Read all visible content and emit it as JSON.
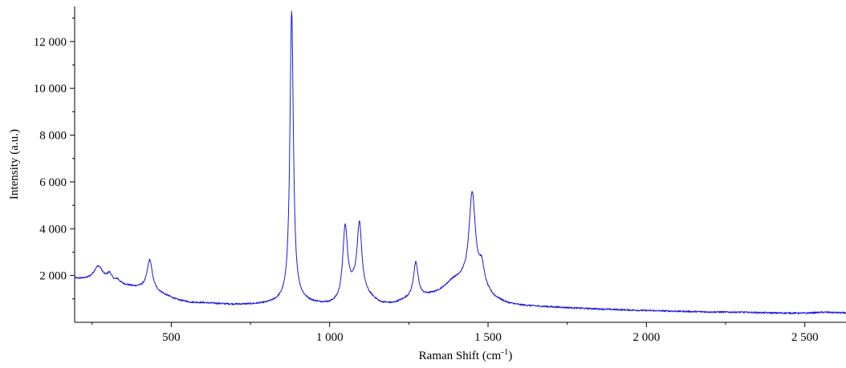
{
  "chart_data": {
    "type": "line",
    "title": "",
    "xlabel": "Raman Shift (cm",
    "xlabel_superscript": "-1",
    "xlabel_suffix": ")",
    "ylabel": "Intensity (a.u.)",
    "xlim": [
      195,
      2630
    ],
    "ylim": [
      0,
      13500
    ],
    "x_ticks": [
      {
        "value": 500,
        "label": "500"
      },
      {
        "value": 1000,
        "label": "1 000"
      },
      {
        "value": 1500,
        "label": "1 500"
      },
      {
        "value": 2000,
        "label": "2 000"
      },
      {
        "value": 2500,
        "label": "2 500"
      }
    ],
    "y_ticks": [
      {
        "value": 2000,
        "label": "2 000"
      },
      {
        "value": 4000,
        "label": "4 000"
      },
      {
        "value": 6000,
        "label": "6 000"
      },
      {
        "value": 8000,
        "label": "8 000"
      },
      {
        "value": 10000,
        "label": "10 000"
      },
      {
        "value": 12000,
        "label": "12 000"
      }
    ],
    "x_minor_step": 250,
    "y_minor_step": 1000,
    "grid": false,
    "series": [
      {
        "color": "#1a1adb",
        "baseline": [
          [
            200,
            1850
          ],
          [
            230,
            1800
          ],
          [
            260,
            1750
          ],
          [
            300,
            1650
          ],
          [
            340,
            1600
          ],
          [
            380,
            1500
          ],
          [
            410,
            1450
          ],
          [
            460,
            1250
          ],
          [
            520,
            950
          ],
          [
            560,
            850
          ],
          [
            600,
            830
          ],
          [
            650,
            790
          ],
          [
            700,
            760
          ],
          [
            750,
            760
          ],
          [
            800,
            790
          ],
          [
            850,
            880
          ],
          [
            900,
            930
          ],
          [
            950,
            800
          ],
          [
            1000,
            750
          ],
          [
            1030,
            820
          ],
          [
            1075,
            1400
          ],
          [
            1120,
            1100
          ],
          [
            1160,
            800
          ],
          [
            1200,
            780
          ],
          [
            1240,
            950
          ],
          [
            1300,
            1100
          ],
          [
            1340,
            1250
          ],
          [
            1380,
            1500
          ],
          [
            1420,
            1700
          ],
          [
            1470,
            1500
          ],
          [
            1520,
            1000
          ],
          [
            1560,
            800
          ],
          [
            1600,
            720
          ],
          [
            1650,
            680
          ],
          [
            1700,
            650
          ],
          [
            1800,
            590
          ],
          [
            1900,
            540
          ],
          [
            2000,
            500
          ],
          [
            2100,
            470
          ],
          [
            2200,
            440
          ],
          [
            2300,
            430
          ],
          [
            2400,
            400
          ],
          [
            2500,
            390
          ],
          [
            2560,
            430
          ],
          [
            2630,
            400
          ]
        ],
        "peaks": [
          {
            "center": 270,
            "height": 650,
            "width": 18
          },
          {
            "center": 305,
            "height": 350,
            "width": 10
          },
          {
            "center": 330,
            "height": 150,
            "width": 8
          },
          {
            "center": 432,
            "height": 1300,
            "width": 10
          },
          {
            "center": 880,
            "height": 12400,
            "width": 6.5
          },
          {
            "center": 1049,
            "height": 3000,
            "width": 9
          },
          {
            "center": 1094,
            "height": 2900,
            "width": 9
          },
          {
            "center": 1272,
            "height": 1500,
            "width": 9
          },
          {
            "center": 1450,
            "height": 3900,
            "width": 12
          },
          {
            "center": 1480,
            "height": 850,
            "width": 10
          },
          {
            "center": 1390,
            "height": 200,
            "width": 25
          }
        ]
      }
    ]
  }
}
